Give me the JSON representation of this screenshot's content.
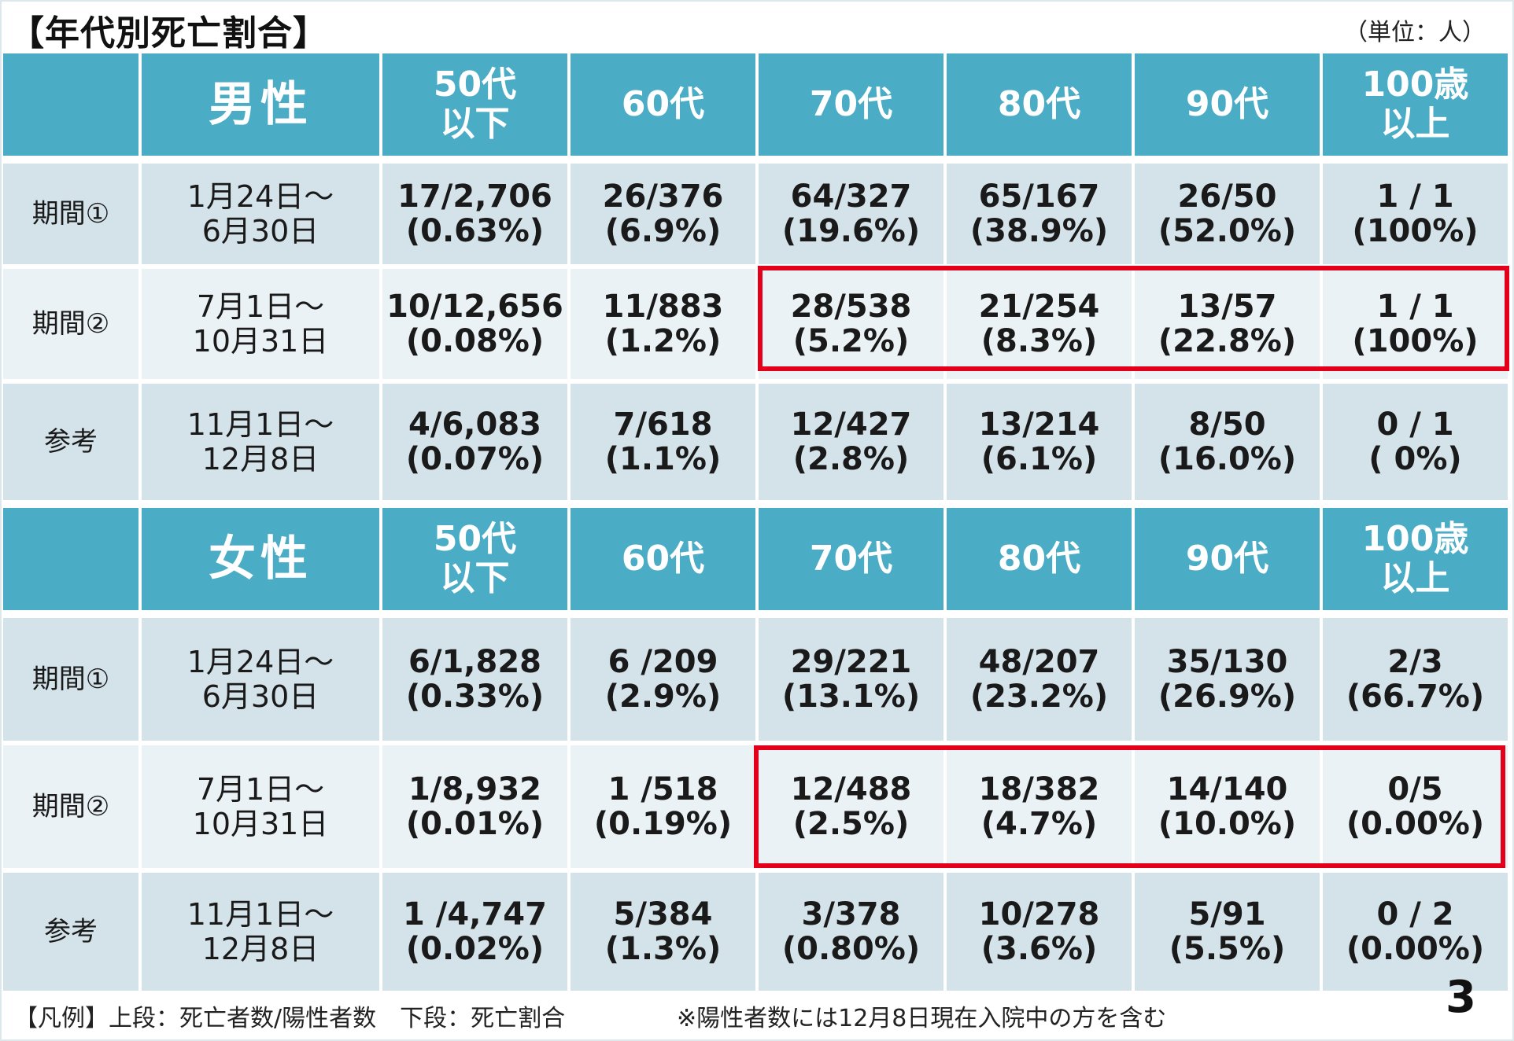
{
  "title": "【年代別死亡割合】",
  "unit_note": "（単位：人）",
  "columns": [
    "50代\n以下",
    "60代",
    "70代",
    "80代",
    "90代",
    "100歳\n以上"
  ],
  "tables": [
    {
      "sex": "男性",
      "rows": [
        {
          "label": "期間①",
          "range": [
            "1月24日～",
            "6月30日"
          ],
          "cells": [
            [
              "17/2,706",
              "(0.63%)"
            ],
            [
              "26/376",
              "(6.9%)"
            ],
            [
              "64/327",
              "(19.6%)"
            ],
            [
              "65/167",
              "(38.9%)"
            ],
            [
              "26/50",
              "(52.0%)"
            ],
            [
              "1 / 1",
              "(100%)"
            ]
          ]
        },
        {
          "label": "期間②",
          "range": [
            "7月1日～",
            "10月31日"
          ],
          "cells": [
            [
              "10/12,656",
              "(0.08%)"
            ],
            [
              "11/883",
              "(1.2%)"
            ],
            [
              "28/538",
              "(5.2%)"
            ],
            [
              "21/254",
              "(8.3%)"
            ],
            [
              "13/57",
              "(22.8%)"
            ],
            [
              "1 / 1",
              "(100%)"
            ]
          ]
        },
        {
          "label": "参考",
          "range": [
            "11月1日～",
            "12月8日"
          ],
          "cells": [
            [
              "4/6,083",
              "(0.07%)"
            ],
            [
              "7/618",
              "(1.1%)"
            ],
            [
              "12/427",
              "(2.8%)"
            ],
            [
              "13/214",
              "(6.1%)"
            ],
            [
              "8/50",
              "(16.0%)"
            ],
            [
              "0 / 1",
              "( 0%)"
            ]
          ]
        }
      ]
    },
    {
      "sex": "女性",
      "rows": [
        {
          "label": "期間①",
          "range": [
            "1月24日～",
            "6月30日"
          ],
          "cells": [
            [
              "6/1,828",
              "(0.33%)"
            ],
            [
              "6 /209",
              "(2.9%)"
            ],
            [
              "29/221",
              "(13.1%)"
            ],
            [
              "48/207",
              "(23.2%)"
            ],
            [
              "35/130",
              "(26.9%)"
            ],
            [
              "2/3",
              "(66.7%)"
            ]
          ]
        },
        {
          "label": "期間②",
          "range": [
            "7月1日～",
            "10月31日"
          ],
          "cells": [
            [
              "1/8,932",
              "(0.01%)"
            ],
            [
              "1 /518",
              "(0.19%)"
            ],
            [
              "12/488",
              "(2.5%)"
            ],
            [
              "18/382",
              "(4.7%)"
            ],
            [
              "14/140",
              "(10.0%)"
            ],
            [
              "0/5",
              "(0.00%)"
            ]
          ]
        },
        {
          "label": "参考",
          "range": [
            "11月1日～",
            "12月8日"
          ],
          "cells": [
            [
              "1 /4,747",
              "(0.02%)"
            ],
            [
              "5/384",
              "(1.3%)"
            ],
            [
              "3/378",
              "(0.80%)"
            ],
            [
              "10/278",
              "(3.6%)"
            ],
            [
              "5/91",
              "(5.5%)"
            ],
            [
              "0 / 2",
              "(0.00%)"
            ]
          ]
        }
      ]
    }
  ],
  "legend": "【凡例】上段：死亡者数/陽性者数　下段：死亡割合",
  "footnote": "※陽性者数には12月8日現在入院中の方を含む",
  "page_number": "3",
  "highlight_color": "#e3001b",
  "header_color": "#4bacc6"
}
